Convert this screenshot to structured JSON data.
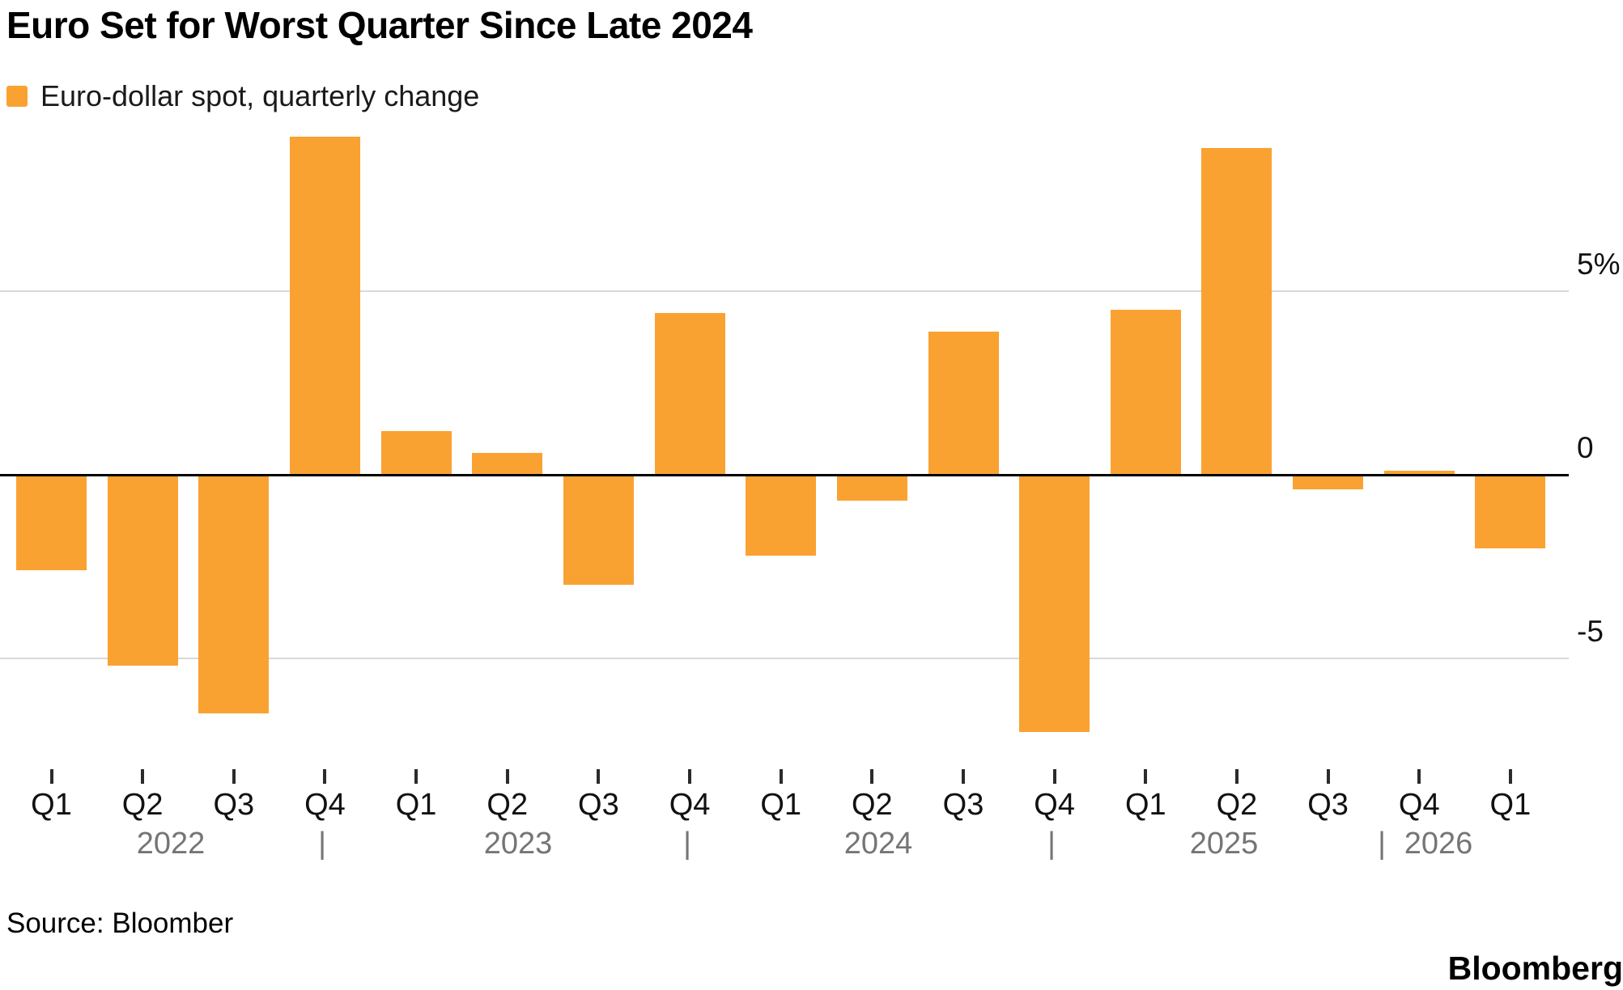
{
  "header": {
    "title": "Euro Set for Worst Quarter Since Late 2024"
  },
  "legend": {
    "label": "Euro-dollar spot, quarterly change",
    "swatch_color": "#FAA231"
  },
  "chart_data": {
    "type": "bar",
    "title": "Euro Set for Worst Quarter Since Late 2024",
    "series_name": "Euro-dollar spot, quarterly change",
    "unit": "%",
    "categories": [
      "Q1 2022",
      "Q2 2022",
      "Q3 2022",
      "Q4 2022",
      "Q1 2023",
      "Q2 2023",
      "Q3 2023",
      "Q4 2023",
      "Q1 2024",
      "Q2 2024",
      "Q3 2024",
      "Q4 2024",
      "Q1 2025",
      "Q2 2025",
      "Q3 2025",
      "Q4 2025",
      "Q1 2026"
    ],
    "x_tick_labels": [
      "Q1",
      "Q2",
      "Q3",
      "Q4",
      "Q1",
      "Q2",
      "Q3",
      "Q4",
      "Q1",
      "Q2",
      "Q3",
      "Q4",
      "Q1",
      "Q2",
      "Q3",
      "Q4",
      "Q1"
    ],
    "values": [
      -2.6,
      -5.2,
      -6.5,
      9.2,
      1.2,
      0.6,
      -3.0,
      4.4,
      -2.2,
      -0.7,
      3.9,
      -7.0,
      4.5,
      8.9,
      -0.4,
      0.1,
      -2.0
    ],
    "bar_color": "#FAA231",
    "year_row": [
      {
        "type": "year",
        "label": "2022"
      },
      {
        "type": "sep",
        "label": "|"
      },
      {
        "type": "year",
        "label": "2023"
      },
      {
        "type": "sep",
        "label": "|"
      },
      {
        "type": "year",
        "label": "2024"
      },
      {
        "type": "sep",
        "label": "|"
      },
      {
        "type": "year",
        "label": "2025"
      },
      {
        "type": "sep",
        "label": "|"
      },
      {
        "type": "year",
        "label": "2026"
      }
    ],
    "y_axis": {
      "tick_labels": [
        "5%",
        "0",
        "-5"
      ],
      "tick_values": [
        5,
        0,
        -5
      ],
      "gridline_values": [
        5,
        -5
      ],
      "zero_line": true,
      "labels_position": "right",
      "ylim": [
        -7.5,
        9.5
      ],
      "grid": true
    },
    "legend_position": "top-left"
  },
  "footer": {
    "source": "Source: Bloomber",
    "brand": "Bloomberg"
  }
}
